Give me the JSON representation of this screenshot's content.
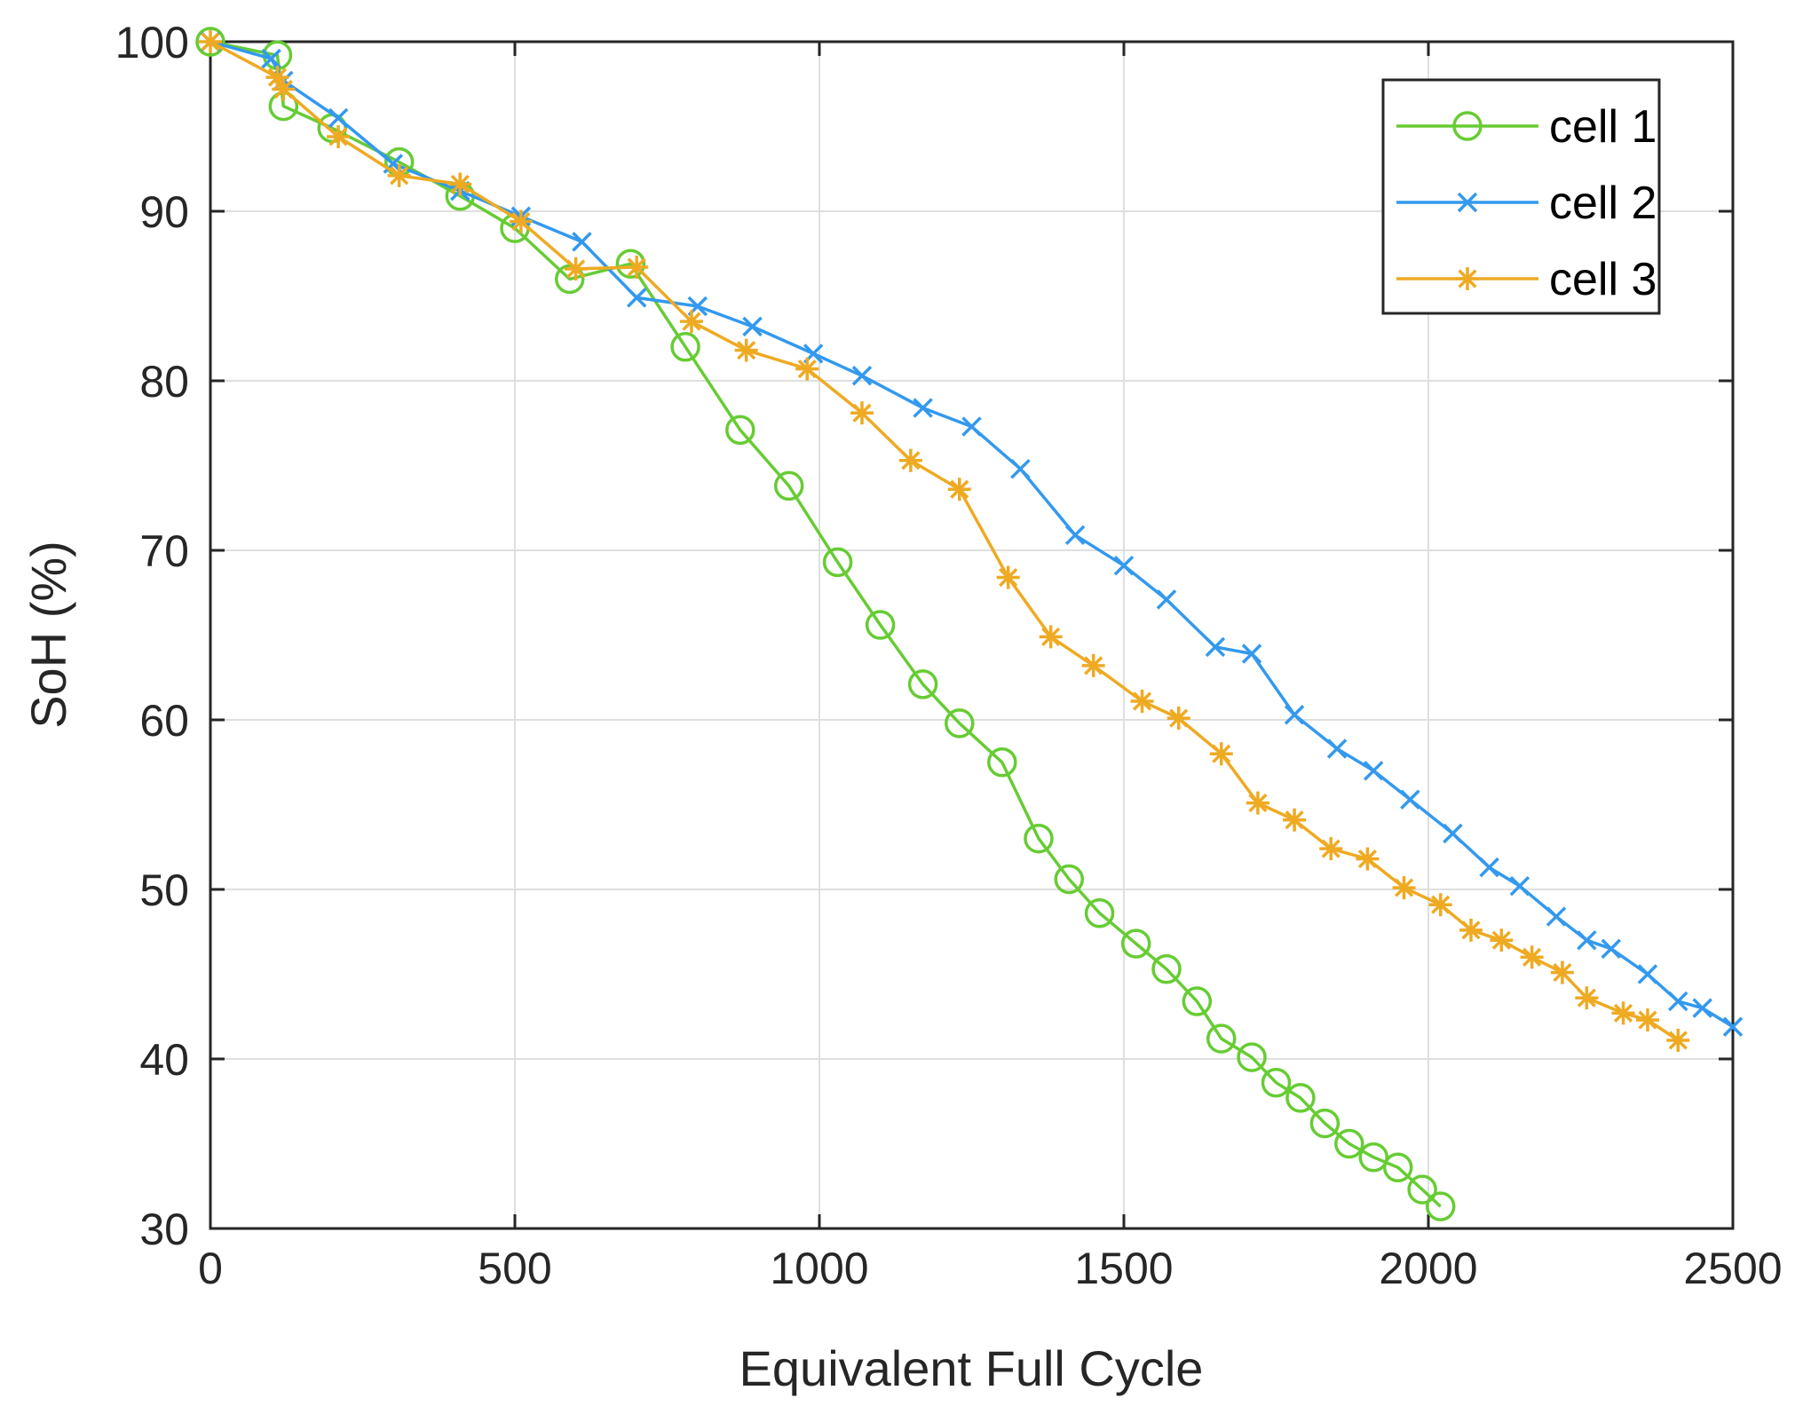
{
  "chart_data": {
    "type": "line",
    "title": "",
    "xlabel": "Equivalent Full Cycle",
    "ylabel": "SoH (%)",
    "xlim": [
      0,
      2500
    ],
    "ylim": [
      30,
      100
    ],
    "xticks": [
      0,
      500,
      1000,
      1500,
      2000,
      2500
    ],
    "yticks": [
      30,
      40,
      50,
      60,
      70,
      80,
      90,
      100
    ],
    "grid": true,
    "legend_position": "top-right",
    "series": [
      {
        "name": "cell 1",
        "color": "#66cc33",
        "marker": "circle",
        "x": [
          0,
          110,
          120,
          200,
          310,
          410,
          500,
          590,
          690,
          780,
          870,
          950,
          1030,
          1100,
          1170,
          1230,
          1300,
          1360,
          1410,
          1460,
          1520,
          1570,
          1620,
          1660,
          1710,
          1750,
          1790,
          1830,
          1870,
          1910,
          1950,
          1990,
          2020
        ],
        "y": [
          100,
          99.2,
          96.2,
          94.9,
          92.9,
          90.9,
          89.0,
          86.0,
          86.9,
          82.0,
          77.1,
          73.8,
          69.3,
          65.6,
          62.1,
          59.8,
          57.5,
          53.0,
          50.6,
          48.6,
          46.8,
          45.3,
          43.4,
          41.2,
          40.1,
          38.6,
          37.7,
          36.2,
          35.0,
          34.2,
          33.6,
          32.3,
          31.3
        ]
      },
      {
        "name": "cell 2",
        "color": "#3399ee",
        "marker": "x",
        "x": [
          0,
          100,
          120,
          210,
          300,
          410,
          510,
          610,
          700,
          800,
          890,
          990,
          1070,
          1170,
          1250,
          1330,
          1420,
          1500,
          1570,
          1650,
          1710,
          1780,
          1850,
          1910,
          1970,
          2040,
          2100,
          2150,
          2210,
          2260,
          2300,
          2360,
          2410,
          2450,
          2500
        ],
        "y": [
          100,
          99.0,
          97.7,
          95.5,
          92.8,
          91.2,
          89.7,
          88.2,
          84.9,
          84.4,
          83.2,
          81.6,
          80.3,
          78.4,
          77.3,
          74.8,
          70.9,
          69.1,
          67.1,
          64.3,
          63.9,
          60.3,
          58.3,
          57.0,
          55.3,
          53.3,
          51.3,
          50.2,
          48.4,
          47.0,
          46.5,
          45.0,
          43.4,
          43.0,
          41.9
        ]
      },
      {
        "name": "cell 3",
        "color": "#eeaa22",
        "marker": "star",
        "x": [
          0,
          110,
          120,
          210,
          310,
          410,
          510,
          600,
          700,
          790,
          880,
          980,
          1070,
          1150,
          1230,
          1310,
          1380,
          1450,
          1530,
          1590,
          1660,
          1720,
          1780,
          1840,
          1900,
          1960,
          2020,
          2070,
          2120,
          2170,
          2220,
          2260,
          2320,
          2360,
          2410
        ],
        "y": [
          100,
          97.9,
          97.2,
          94.4,
          92.1,
          91.6,
          89.4,
          86.6,
          86.7,
          83.5,
          81.8,
          80.7,
          78.1,
          75.3,
          73.6,
          68.4,
          64.9,
          63.2,
          61.1,
          60.1,
          58.0,
          55.1,
          54.1,
          52.4,
          51.8,
          50.1,
          49.1,
          47.6,
          47.0,
          46.0,
          45.1,
          43.6,
          42.7,
          42.3,
          41.1
        ]
      }
    ]
  }
}
